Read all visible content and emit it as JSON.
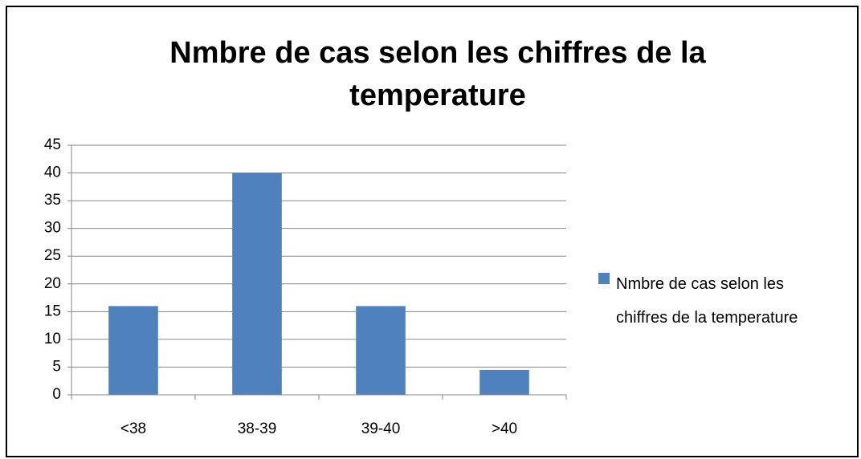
{
  "chart_data": {
    "type": "bar",
    "title": "Nmbre de cas selon les chiffres de la temperature",
    "categories": [
      "<38",
      "38-39",
      "39-40",
      ">40"
    ],
    "series": [
      {
        "name": "Nmbre de cas selon les chiffres de la temperature",
        "color": "#4f81bd",
        "values": [
          16,
          40,
          16,
          4.5
        ]
      }
    ],
    "ylim": [
      0,
      45
    ],
    "yticks": [
      0,
      5,
      10,
      15,
      20,
      25,
      30,
      35,
      40,
      45
    ],
    "grid": true,
    "legend": "right"
  }
}
